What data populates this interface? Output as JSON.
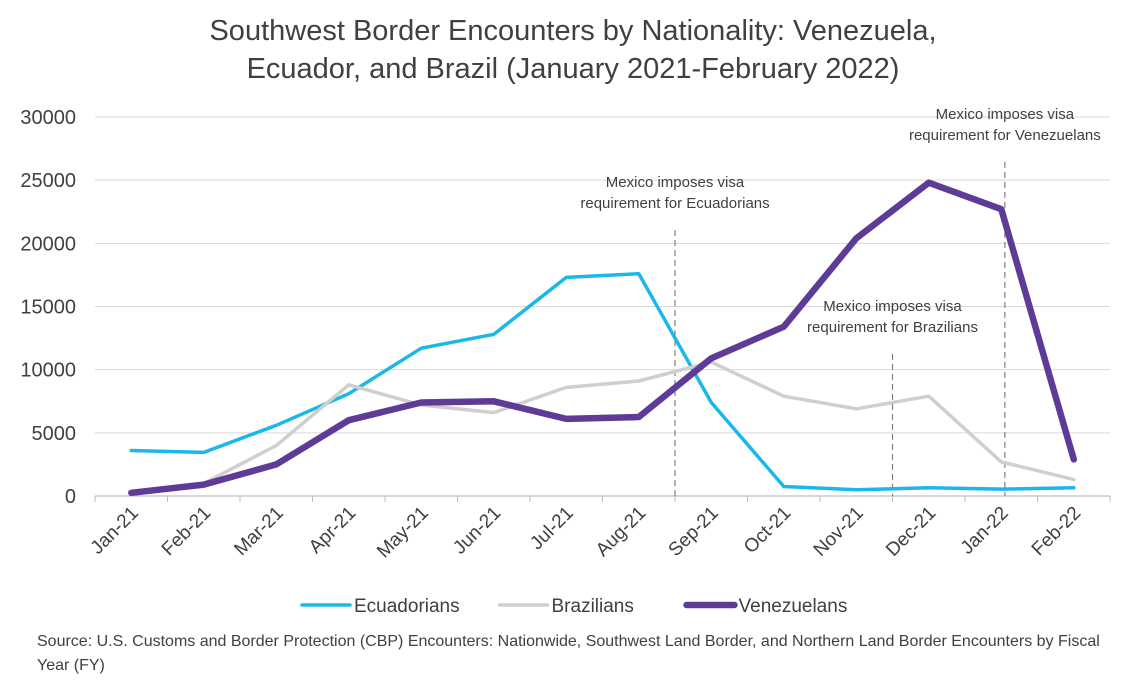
{
  "chart_data": {
    "type": "line",
    "title_lines": [
      "Southwest Border Encounters by Nationality: Venezuela,",
      "Ecuador, and Brazil (January 2021-February 2022)"
    ],
    "categories": [
      "Jan-21",
      "Feb-21",
      "Mar-21",
      "Apr-21",
      "May-21",
      "Jun-21",
      "Jul-21",
      "Aug-21",
      "Sep-21",
      "Oct-21",
      "Nov-21",
      "Dec-21",
      "Jan-22",
      "Feb-22"
    ],
    "ylim": [
      0,
      30000
    ],
    "yticks": [
      0,
      5000,
      10000,
      15000,
      20000,
      25000,
      30000
    ],
    "grid": true,
    "legend_position": "bottom",
    "series": [
      {
        "name": "Ecuadorians",
        "color": "#1ab7ea",
        "values": [
          3600,
          3450,
          5600,
          8100,
          11700,
          12800,
          17300,
          17600,
          7400,
          750,
          500,
          650,
          550,
          650
        ]
      },
      {
        "name": "Brazilians",
        "color": "#d0cece",
        "values": [
          300,
          1000,
          4000,
          8800,
          7200,
          6600,
          8600,
          9100,
          10600,
          7900,
          6900,
          7900,
          2700,
          1300
        ]
      },
      {
        "name": "Venezuelans",
        "color": "#5e3b96",
        "values": [
          250,
          900,
          2500,
          6000,
          7400,
          7500,
          6100,
          6250,
          10900,
          13400,
          20400,
          24800,
          22700,
          2900
        ]
      }
    ],
    "annotations": [
      {
        "lines": [
          "Mexico imposes visa",
          "requirement for Ecuadorians"
        ],
        "x_between": [
          "Aug-21",
          "Sep-21"
        ],
        "label_y": 22000
      },
      {
        "lines": [
          "Mexico imposes visa",
          "requirement for Brazilians"
        ],
        "x_between": [
          "Nov-21",
          "Dec-21"
        ],
        "label_y": 12200
      },
      {
        "lines": [
          "Mexico imposes visa",
          "requirement for Venezuelans"
        ],
        "x_between": [
          "Jan-22",
          "Jan-22"
        ],
        "label_y": 27400
      }
    ]
  },
  "source_text": "Source: U.S. Customs and Border Protection (CBP) Encounters: Nationwide, Southwest Land Border, and Northern Land Border Encounters by Fiscal Year (FY)"
}
